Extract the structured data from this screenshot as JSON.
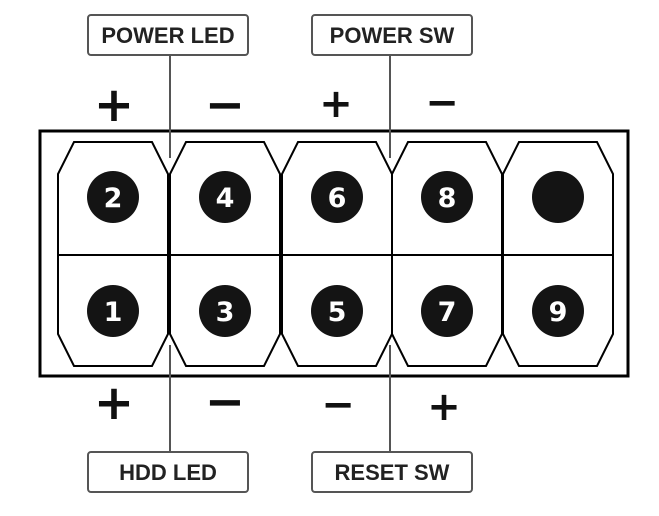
{
  "labels": {
    "power_led": "POWER LED",
    "power_sw": "POWER SW",
    "hdd_led": "HDD LED",
    "reset_sw": "RESET SW"
  },
  "polarity": {
    "pin2": "+",
    "pin4": "−",
    "pin6": "+",
    "pin8": "−",
    "pin1": "+",
    "pin3": "−",
    "pin5": "−",
    "pin7": "+"
  },
  "pins": {
    "top": [
      "2",
      "4",
      "6",
      "8",
      ""
    ],
    "bottom": [
      "1",
      "3",
      "5",
      "7",
      "9"
    ]
  },
  "colors": {
    "outline": "#000000",
    "pin_fill": "#141414",
    "label_border": "#555555",
    "leader": "#555555"
  }
}
